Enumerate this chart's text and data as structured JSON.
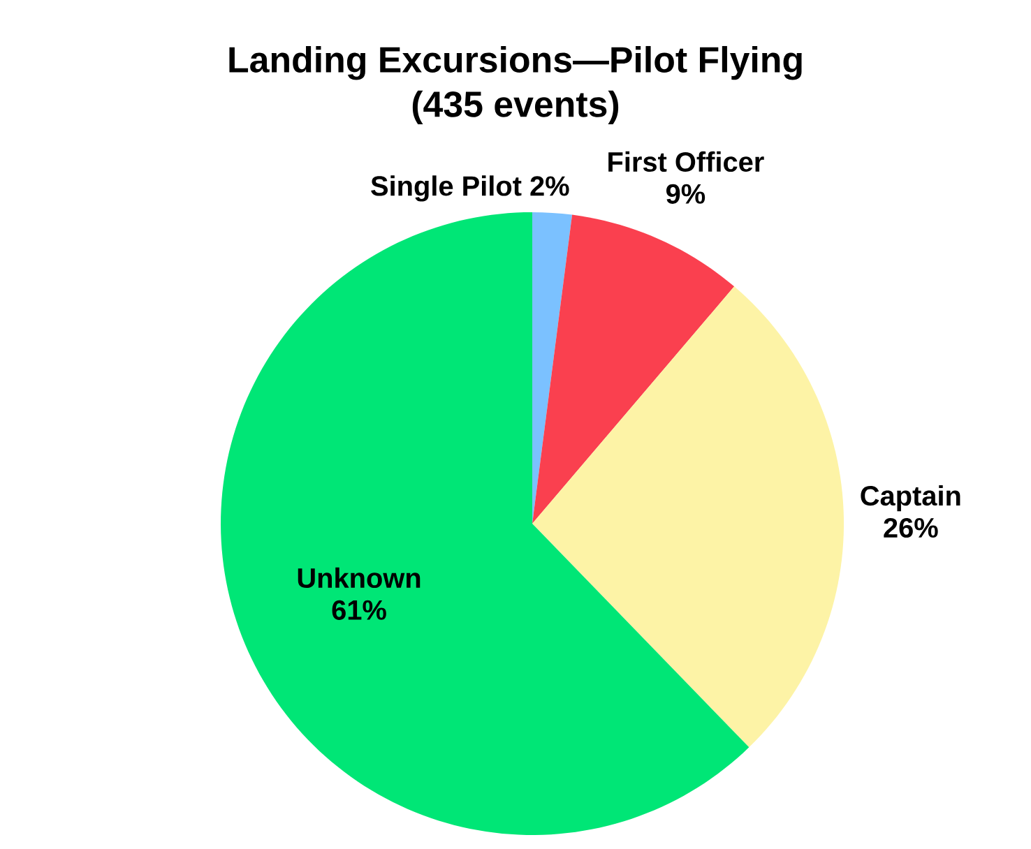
{
  "chart_data": {
    "type": "pie",
    "title": "Landing Excursions—Pilot Flying",
    "subtitle": "(435 events)",
    "categories": [
      "Single Pilot",
      "First Officer",
      "Captain",
      "Unknown"
    ],
    "values": [
      2,
      9,
      26,
      61
    ],
    "value_labels": [
      "2%",
      "9%",
      "26%",
      "61%"
    ],
    "colors": [
      "#7bc1ff",
      "#fa404f",
      "#fdf3a6",
      "#00e676"
    ]
  }
}
